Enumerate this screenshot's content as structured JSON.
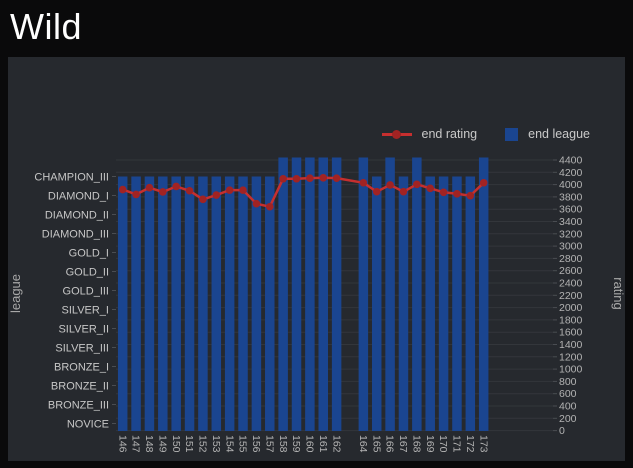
{
  "page": {
    "title": "Wild"
  },
  "legend": {
    "items": [
      {
        "label": "end rating",
        "type": "line",
        "color": "#c62f2f",
        "marker_color": "#a12323"
      },
      {
        "label": "end league",
        "type": "square",
        "color": "#1a4590"
      }
    ]
  },
  "colors": {
    "background": "#0a0a0b",
    "card": "#26292e",
    "grid": "#33363b",
    "tick": "#4a4d52",
    "axis_text": "#b3b3b3",
    "league_text": "#c6c6c6",
    "bar": "#1a4590",
    "line": "#c62f2f",
    "marker": "#a12323"
  },
  "chart_data": {
    "type": "mixed",
    "title": "Wild",
    "x_labels": [
      "146",
      "147",
      "148",
      "149",
      "150",
      "151",
      "152",
      "153",
      "154",
      "155",
      "156",
      "157",
      "158",
      "159",
      "160",
      "161",
      "162",
      "",
      "164",
      "165",
      "166",
      "167",
      "168",
      "169",
      "170",
      "171",
      "172",
      "173"
    ],
    "yaxis_left": {
      "title": "league",
      "categories_bottom_to_top": [
        "NOVICE",
        "BRONZE_III",
        "BRONZE_II",
        "BRONZE_I",
        "SILVER_III",
        "SILVER_II",
        "SILVER_I",
        "GOLD_III",
        "GOLD_II",
        "GOLD_I",
        "DIAMOND_III",
        "DIAMOND_II",
        "DIAMOND_I",
        "CHAMPION_III"
      ],
      "max_index": 15
    },
    "yaxis_right": {
      "title": "rating",
      "min": 0,
      "max": 4400,
      "tick_step": 200
    },
    "series": [
      {
        "name": "end rating",
        "type": "line",
        "yaxis": "rating",
        "values": [
          3920,
          3840,
          3950,
          3880,
          3970,
          3900,
          3760,
          3830,
          3910,
          3910,
          3690,
          3640,
          4095,
          4095,
          4105,
          4110,
          4105,
          null,
          4030,
          3885,
          3995,
          3885,
          4005,
          3940,
          3875,
          3850,
          3820,
          4030
        ]
      },
      {
        "name": "end league",
        "type": "bar",
        "yaxis": "league",
        "values": [
          14,
          14,
          14,
          14,
          14,
          14,
          14,
          14,
          14,
          14,
          14,
          14,
          15,
          15,
          15,
          15,
          15,
          null,
          15,
          14,
          15,
          14,
          15,
          14,
          14,
          14,
          14,
          15
        ]
      }
    ],
    "legend_position": "top-right",
    "grid": "horizontal-only"
  }
}
